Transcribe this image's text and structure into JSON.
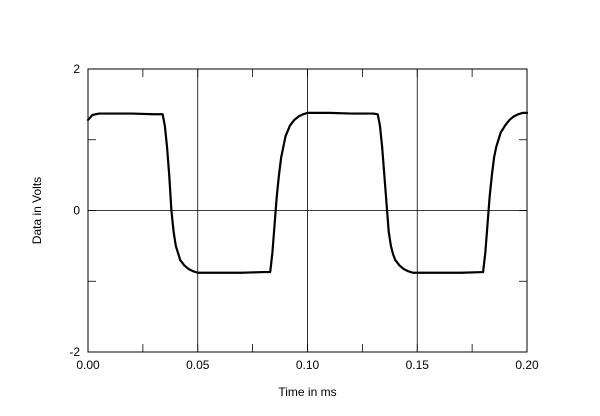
{
  "chart_data": {
    "type": "line",
    "title": "",
    "xlabel": "Time in ms",
    "ylabel": "Data in Volts",
    "xlim": [
      0.0,
      0.2
    ],
    "ylim": [
      -2,
      2
    ],
    "x_ticks": [
      0.0,
      0.05,
      0.1,
      0.15,
      0.2
    ],
    "x_tick_labels": [
      "0.00",
      "0.05",
      "0.10",
      "0.15",
      "0.20"
    ],
    "y_ticks": [
      -2,
      0,
      2
    ],
    "y_tick_labels": [
      "-2",
      "0",
      "2"
    ],
    "grid": true,
    "legend": "none",
    "line_color": "#000000",
    "series": [
      {
        "x": [
          0.0,
          0.002,
          0.005,
          0.01,
          0.02,
          0.03,
          0.034,
          0.035,
          0.036,
          0.037,
          0.038,
          0.039,
          0.04,
          0.041,
          0.042,
          0.044,
          0.046,
          0.048,
          0.05,
          0.055,
          0.06,
          0.07,
          0.08,
          0.083,
          0.084,
          0.085,
          0.086,
          0.087,
          0.088,
          0.089,
          0.09,
          0.092,
          0.094,
          0.096,
          0.098,
          0.1,
          0.11,
          0.12,
          0.13,
          0.132,
          0.133,
          0.134,
          0.135,
          0.136,
          0.137,
          0.138,
          0.139,
          0.14,
          0.142,
          0.144,
          0.146,
          0.148,
          0.15,
          0.155,
          0.16,
          0.17,
          0.18,
          0.181,
          0.182,
          0.183,
          0.184,
          0.185,
          0.186,
          0.187,
          0.188,
          0.19,
          0.192,
          0.194,
          0.196,
          0.198,
          0.2
        ],
        "y": [
          1.28,
          1.35,
          1.37,
          1.37,
          1.37,
          1.36,
          1.36,
          1.2,
          0.9,
          0.5,
          0.0,
          -0.3,
          -0.5,
          -0.6,
          -0.7,
          -0.78,
          -0.83,
          -0.86,
          -0.88,
          -0.88,
          -0.88,
          -0.88,
          -0.87,
          -0.87,
          -0.6,
          -0.2,
          0.2,
          0.5,
          0.75,
          0.9,
          1.05,
          1.2,
          1.28,
          1.33,
          1.36,
          1.38,
          1.38,
          1.37,
          1.37,
          1.36,
          1.2,
          0.9,
          0.5,
          0.1,
          -0.3,
          -0.5,
          -0.62,
          -0.7,
          -0.78,
          -0.83,
          -0.86,
          -0.88,
          -0.88,
          -0.88,
          -0.88,
          -0.88,
          -0.87,
          -0.6,
          -0.2,
          0.2,
          0.5,
          0.75,
          0.9,
          1.0,
          1.1,
          1.2,
          1.28,
          1.33,
          1.36,
          1.38,
          1.38
        ]
      }
    ]
  }
}
